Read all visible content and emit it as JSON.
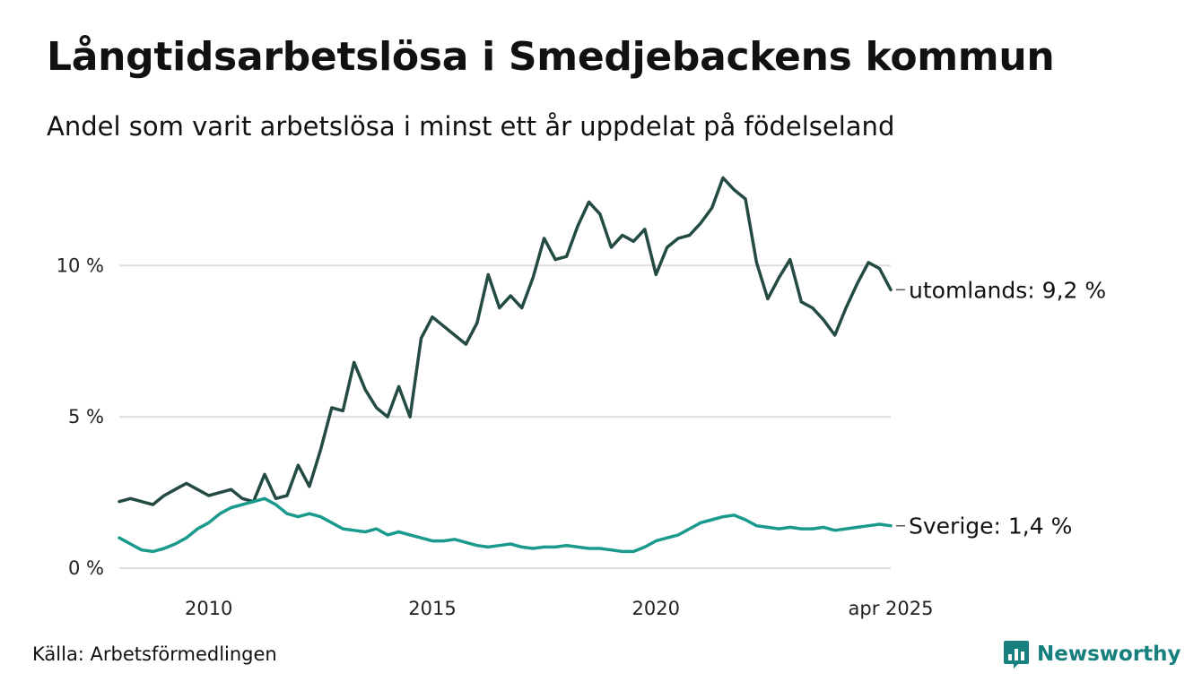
{
  "title": "Långtidsarbetslösa i Smedjebackens kommun",
  "subtitle": "Andel som varit arbetslösa i minst ett år uppdelat på födelseland",
  "source": "Källa: Arbetsförmedlingen",
  "brand": {
    "name": "Newsworthy",
    "logo_icon": "newsworthy-logo-icon",
    "color": "#17807e"
  },
  "chart_data": {
    "type": "line",
    "title": "Långtidsarbetslösa i Smedjebackens kommun",
    "subtitle": "Andel som varit arbetslösa i minst ett år uppdelat på födelseland",
    "x_ticks": [
      {
        "x": 2010,
        "label": "2010"
      },
      {
        "x": 2015,
        "label": "2015"
      },
      {
        "x": 2020,
        "label": "2020"
      },
      {
        "x": 2025.25,
        "label": "apr 2025"
      }
    ],
    "y_ticks": [
      {
        "y": 0,
        "label": "0 %"
      },
      {
        "y": 5,
        "label": "5 %"
      },
      {
        "y": 10,
        "label": "10 %"
      }
    ],
    "xlim": [
      2008.0,
      2025.25
    ],
    "ylim": [
      0,
      13
    ],
    "grid": "horizontal",
    "legend": "direct labels at line ends (right)",
    "series": [
      {
        "name": "utomlands",
        "end_label": "utomlands: 9,2 %",
        "color": "#234a43",
        "points": [
          [
            2008.0,
            2.2
          ],
          [
            2008.25,
            2.3
          ],
          [
            2008.5,
            2.2
          ],
          [
            2008.75,
            2.1
          ],
          [
            2009.0,
            2.4
          ],
          [
            2009.25,
            2.6
          ],
          [
            2009.5,
            2.8
          ],
          [
            2009.75,
            2.6
          ],
          [
            2010.0,
            2.4
          ],
          [
            2010.25,
            2.5
          ],
          [
            2010.5,
            2.6
          ],
          [
            2010.75,
            2.3
          ],
          [
            2011.0,
            2.2
          ],
          [
            2011.25,
            3.1
          ],
          [
            2011.5,
            2.3
          ],
          [
            2011.75,
            2.4
          ],
          [
            2012.0,
            3.4
          ],
          [
            2012.25,
            2.7
          ],
          [
            2012.5,
            3.9
          ],
          [
            2012.75,
            5.3
          ],
          [
            2013.0,
            5.2
          ],
          [
            2013.25,
            6.8
          ],
          [
            2013.5,
            5.9
          ],
          [
            2013.75,
            5.3
          ],
          [
            2014.0,
            5.0
          ],
          [
            2014.25,
            6.0
          ],
          [
            2014.5,
            5.0
          ],
          [
            2014.75,
            7.6
          ],
          [
            2015.0,
            8.3
          ],
          [
            2015.25,
            8.0
          ],
          [
            2015.5,
            7.7
          ],
          [
            2015.75,
            7.4
          ],
          [
            2016.0,
            8.1
          ],
          [
            2016.25,
            9.7
          ],
          [
            2016.5,
            8.6
          ],
          [
            2016.75,
            9.0
          ],
          [
            2017.0,
            8.6
          ],
          [
            2017.25,
            9.6
          ],
          [
            2017.5,
            10.9
          ],
          [
            2017.75,
            10.2
          ],
          [
            2018.0,
            10.3
          ],
          [
            2018.25,
            11.3
          ],
          [
            2018.5,
            12.1
          ],
          [
            2018.75,
            11.7
          ],
          [
            2019.0,
            10.6
          ],
          [
            2019.25,
            11.0
          ],
          [
            2019.5,
            10.8
          ],
          [
            2019.75,
            11.2
          ],
          [
            2020.0,
            9.7
          ],
          [
            2020.25,
            10.6
          ],
          [
            2020.5,
            10.9
          ],
          [
            2020.75,
            11.0
          ],
          [
            2021.0,
            11.4
          ],
          [
            2021.25,
            11.9
          ],
          [
            2021.5,
            12.9
          ],
          [
            2021.75,
            12.5
          ],
          [
            2022.0,
            12.2
          ],
          [
            2022.25,
            10.1
          ],
          [
            2022.5,
            8.9
          ],
          [
            2022.75,
            9.6
          ],
          [
            2023.0,
            10.2
          ],
          [
            2023.25,
            8.8
          ],
          [
            2023.5,
            8.6
          ],
          [
            2023.75,
            8.2
          ],
          [
            2024.0,
            7.7
          ],
          [
            2024.25,
            8.6
          ],
          [
            2024.5,
            9.4
          ],
          [
            2024.75,
            10.1
          ],
          [
            2025.0,
            9.9
          ],
          [
            2025.25,
            9.2
          ]
        ]
      },
      {
        "name": "Sverige",
        "end_label": "Sverige: 1,4 %",
        "color": "#1a9a8d",
        "points": [
          [
            2008.0,
            1.0
          ],
          [
            2008.25,
            0.8
          ],
          [
            2008.5,
            0.6
          ],
          [
            2008.75,
            0.55
          ],
          [
            2009.0,
            0.65
          ],
          [
            2009.25,
            0.8
          ],
          [
            2009.5,
            1.0
          ],
          [
            2009.75,
            1.3
          ],
          [
            2010.0,
            1.5
          ],
          [
            2010.25,
            1.8
          ],
          [
            2010.5,
            2.0
          ],
          [
            2010.75,
            2.1
          ],
          [
            2011.0,
            2.2
          ],
          [
            2011.25,
            2.3
          ],
          [
            2011.5,
            2.1
          ],
          [
            2011.75,
            1.8
          ],
          [
            2012.0,
            1.7
          ],
          [
            2012.25,
            1.8
          ],
          [
            2012.5,
            1.7
          ],
          [
            2012.75,
            1.5
          ],
          [
            2013.0,
            1.3
          ],
          [
            2013.25,
            1.25
          ],
          [
            2013.5,
            1.2
          ],
          [
            2013.75,
            1.3
          ],
          [
            2014.0,
            1.1
          ],
          [
            2014.25,
            1.2
          ],
          [
            2014.5,
            1.1
          ],
          [
            2014.75,
            1.0
          ],
          [
            2015.0,
            0.9
          ],
          [
            2015.25,
            0.9
          ],
          [
            2015.5,
            0.95
          ],
          [
            2015.75,
            0.85
          ],
          [
            2016.0,
            0.75
          ],
          [
            2016.25,
            0.7
          ],
          [
            2016.5,
            0.75
          ],
          [
            2016.75,
            0.8
          ],
          [
            2017.0,
            0.7
          ],
          [
            2017.25,
            0.65
          ],
          [
            2017.5,
            0.7
          ],
          [
            2017.75,
            0.7
          ],
          [
            2018.0,
            0.75
          ],
          [
            2018.25,
            0.7
          ],
          [
            2018.5,
            0.65
          ],
          [
            2018.75,
            0.65
          ],
          [
            2019.0,
            0.6
          ],
          [
            2019.25,
            0.55
          ],
          [
            2019.5,
            0.55
          ],
          [
            2019.75,
            0.7
          ],
          [
            2020.0,
            0.9
          ],
          [
            2020.25,
            1.0
          ],
          [
            2020.5,
            1.1
          ],
          [
            2020.75,
            1.3
          ],
          [
            2021.0,
            1.5
          ],
          [
            2021.25,
            1.6
          ],
          [
            2021.5,
            1.7
          ],
          [
            2021.75,
            1.75
          ],
          [
            2022.0,
            1.6
          ],
          [
            2022.25,
            1.4
          ],
          [
            2022.5,
            1.35
          ],
          [
            2022.75,
            1.3
          ],
          [
            2023.0,
            1.35
          ],
          [
            2023.25,
            1.3
          ],
          [
            2023.5,
            1.3
          ],
          [
            2023.75,
            1.35
          ],
          [
            2024.0,
            1.25
          ],
          [
            2024.25,
            1.3
          ],
          [
            2024.5,
            1.35
          ],
          [
            2024.75,
            1.4
          ],
          [
            2025.0,
            1.45
          ],
          [
            2025.25,
            1.4
          ]
        ]
      }
    ]
  }
}
